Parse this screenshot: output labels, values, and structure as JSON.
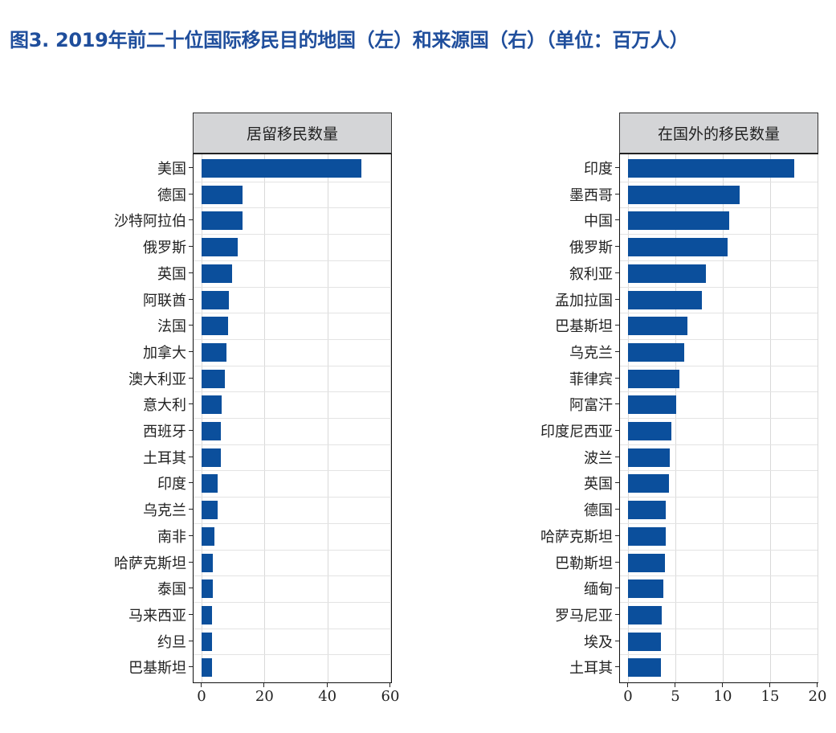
{
  "title": "图3. 2019年前二十位国际移民目的地国（左）和来源国（右）（单位：百万人）",
  "chart_data": [
    {
      "type": "bar",
      "orientation": "horizontal",
      "title": "居留移民数量",
      "xlabel": "",
      "ylabel": "",
      "xlim": [
        0,
        60
      ],
      "xticks": [
        0,
        20,
        40,
        60
      ],
      "grid": true,
      "color": "#0b4f9c",
      "categories": [
        "美国",
        "德国",
        "沙特阿拉伯",
        "俄罗斯",
        "英国",
        "阿联酋",
        "法国",
        "加拿大",
        "澳大利亚",
        "意大利",
        "西班牙",
        "土耳其",
        "印度",
        "乌克兰",
        "南非",
        "哈萨克斯坦",
        "泰国",
        "马来西亚",
        "约旦",
        "巴基斯坦"
      ],
      "values": [
        50.7,
        13.1,
        13.1,
        11.6,
        9.6,
        8.6,
        8.3,
        8.0,
        7.5,
        6.3,
        6.1,
        6.1,
        5.2,
        5.0,
        4.2,
        3.7,
        3.6,
        3.4,
        3.3,
        3.3
      ]
    },
    {
      "type": "bar",
      "orientation": "horizontal",
      "title": "在国外的移民数量",
      "xlabel": "",
      "ylabel": "",
      "xlim": [
        0,
        20
      ],
      "xticks": [
        0,
        5,
        10,
        15,
        20
      ],
      "grid": true,
      "color": "#0b4f9c",
      "categories": [
        "印度",
        "墨西哥",
        "中国",
        "俄罗斯",
        "叙利亚",
        "孟加拉国",
        "巴基斯坦",
        "乌克兰",
        "菲律宾",
        "阿富汗",
        "印度尼西亚",
        "波兰",
        "英国",
        "德国",
        "哈萨克斯坦",
        "巴勒斯坦",
        "缅甸",
        "罗马尼亚",
        "埃及",
        "土耳其"
      ],
      "values": [
        17.5,
        11.8,
        10.7,
        10.5,
        8.2,
        7.8,
        6.3,
        5.9,
        5.4,
        5.1,
        4.6,
        4.4,
        4.3,
        4.0,
        4.0,
        3.9,
        3.7,
        3.6,
        3.5,
        3.5
      ]
    }
  ]
}
